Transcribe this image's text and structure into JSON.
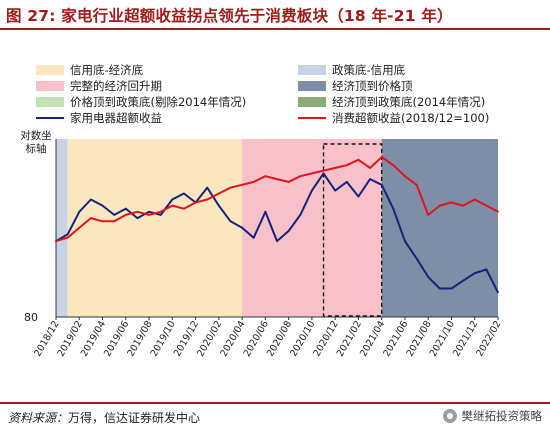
{
  "header": {
    "figure_label": "图 27:",
    "title": "家电行业超额收益拐点领先于消费板块（18 年-21 年）"
  },
  "legend": [
    {
      "label": "信用底-经济底",
      "kind": "area",
      "color": "#fbe7bf"
    },
    {
      "label": "政策底-信用底",
      "kind": "area",
      "color": "#c9d3e6"
    },
    {
      "label": "完整的经济回升期",
      "kind": "area",
      "color": "#f8c0c8"
    },
    {
      "label": "经济顶到价格顶",
      "kind": "area",
      "color": "#7d8ea6"
    },
    {
      "label": "价格顶到政策底(剔除2014年情况)",
      "kind": "area",
      "color": "#c3e2b3"
    },
    {
      "label": "经济顶到政策底(2014年情况)",
      "kind": "area",
      "color": "#8aaa78"
    },
    {
      "label": "家用电器超额收益",
      "kind": "line",
      "color": "#16237a"
    },
    {
      "label": "消费超额收益(2018/12=100)",
      "kind": "line",
      "color": "#e0141e"
    }
  ],
  "axis_note": "对数坐标轴",
  "source": {
    "label": "资料来源：",
    "text": "万得，信达证券研发中心"
  },
  "watermark": "樊继拓投资策略",
  "chart_data": {
    "type": "line",
    "title": "家电行业超额收益拐点领先于消费板块（18 年-21 年）",
    "y_scale": "log",
    "y_tick_labels": [
      "80"
    ],
    "x_tick_labels": [
      "2018/12",
      "2019/02",
      "2019/04",
      "2019/06",
      "2019/08",
      "2019/10",
      "2019/12",
      "2020/02",
      "2020/04",
      "2020/06",
      "2020/08",
      "2020/10",
      "2020/12",
      "2021/02",
      "2021/04",
      "2021/06",
      "2021/08",
      "2021/10",
      "2021/12",
      "2022/02"
    ],
    "shaded_periods": [
      {
        "name": "政策底-信用底",
        "start": "2018/12",
        "end": "2019/01",
        "color": "#c9d3e6"
      },
      {
        "name": "信用底-经济底",
        "start": "2019/01",
        "end": "2020/04",
        "color": "#fbe7bf"
      },
      {
        "name": "完整的经济回升期",
        "start": "2020/04",
        "end": "2021/04",
        "color": "#f8c0c8"
      },
      {
        "name": "经济顶到价格顶",
        "start": "2021/04",
        "end": "2022/02",
        "color": "#7d8ea6"
      }
    ],
    "highlight_box": {
      "start": "2020/11",
      "end": "2021/04",
      "style": "dashed"
    },
    "series": [
      {
        "name": "家用电器超额收益",
        "color": "#16237a",
        "x": [
          "2018/12",
          "2019/01",
          "2019/02",
          "2019/03",
          "2019/04",
          "2019/05",
          "2019/06",
          "2019/07",
          "2019/08",
          "2019/09",
          "2019/10",
          "2019/11",
          "2019/12",
          "2020/01",
          "2020/02",
          "2020/03",
          "2020/04",
          "2020/05",
          "2020/06",
          "2020/07",
          "2020/08",
          "2020/09",
          "2020/10",
          "2020/11",
          "2020/12",
          "2021/01",
          "2021/02",
          "2021/03",
          "2021/04",
          "2021/05",
          "2021/06",
          "2021/07",
          "2021/08",
          "2021/09",
          "2021/10",
          "2021/11",
          "2021/12",
          "2022/01",
          "2022/02"
        ],
        "values": [
          100,
          102,
          109,
          113,
          111,
          108,
          110,
          107,
          109,
          108,
          113,
          115,
          112,
          117,
          111,
          106,
          104,
          101,
          109,
          100,
          103,
          108,
          116,
          122,
          116,
          119,
          114,
          120,
          118,
          110,
          100,
          95,
          90,
          87,
          87,
          89,
          91,
          92,
          86
        ]
      },
      {
        "name": "消费超额收益(2018/12=100)",
        "color": "#e0141e",
        "x": [
          "2018/12",
          "2019/01",
          "2019/02",
          "2019/03",
          "2019/04",
          "2019/05",
          "2019/06",
          "2019/07",
          "2019/08",
          "2019/09",
          "2019/10",
          "2019/11",
          "2019/12",
          "2020/01",
          "2020/02",
          "2020/03",
          "2020/04",
          "2020/05",
          "2020/06",
          "2020/07",
          "2020/08",
          "2020/09",
          "2020/10",
          "2020/11",
          "2020/12",
          "2021/01",
          "2021/02",
          "2021/03",
          "2021/04",
          "2021/05",
          "2021/06",
          "2021/07",
          "2021/08",
          "2021/09",
          "2021/10",
          "2021/11",
          "2021/12",
          "2022/01",
          "2022/02"
        ],
        "values": [
          100,
          101,
          104,
          107,
          106,
          106,
          108,
          109,
          108,
          109,
          111,
          110,
          112,
          113,
          115,
          117,
          118,
          119,
          121,
          120,
          119,
          121,
          122,
          123,
          124,
          125,
          127,
          124,
          128,
          125,
          121,
          118,
          108,
          111,
          112,
          111,
          113,
          111,
          109
        ]
      }
    ]
  }
}
